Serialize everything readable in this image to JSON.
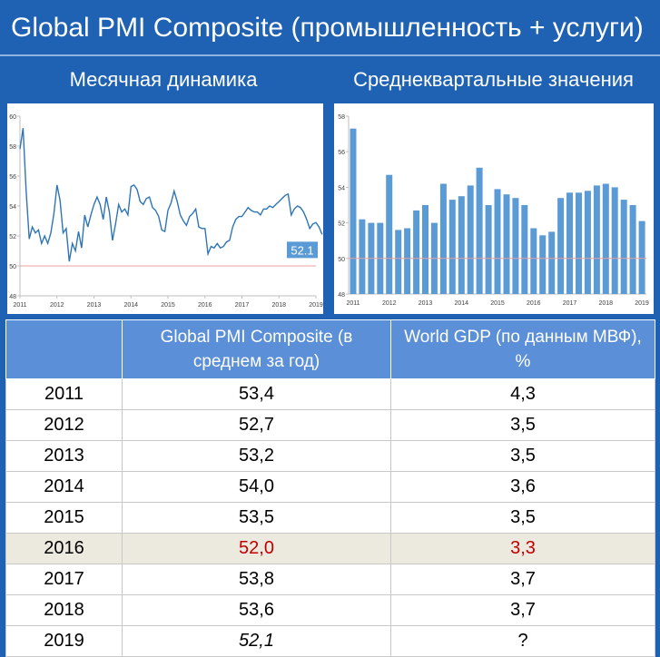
{
  "header": {
    "title": "Global PMI Composite (промышленность + услуги)",
    "left_subtitle": "Месячная динамика",
    "right_subtitle": "Среднеквартальные значения"
  },
  "chart_data": [
    {
      "type": "line",
      "title": "Месячная динамика",
      "ylim": [
        48,
        60
      ],
      "yticks": [
        48,
        50,
        52,
        54,
        56,
        58,
        60
      ],
      "xticks": [
        "2011",
        "2012",
        "2013",
        "2014",
        "2015",
        "2016",
        "2017",
        "2018",
        "2019"
      ],
      "reference_line": 50,
      "last_value_label": "52.1",
      "series": [
        {
          "x_start": "2011-01",
          "values": [
            57.8,
            59.2,
            55.0,
            51.8,
            52.6,
            52.2,
            52.4,
            51.5,
            52.0,
            51.5,
            52.2,
            53.5,
            55.4,
            54.4,
            52.2,
            52.5,
            50.3,
            51.5,
            51.0,
            52.3,
            51.2,
            53.4,
            52.6,
            53.4,
            54.1,
            54.6,
            54.1,
            53.1,
            54.6,
            53.6,
            51.7,
            52.8,
            54.1,
            53.6,
            53.8,
            53.4,
            55.3,
            55.4,
            55.1,
            54.3,
            54.1,
            54.5,
            54.6,
            53.9,
            53.7,
            53.3,
            52.4,
            52.3,
            53.7,
            54.2,
            55.0,
            54.3,
            53.4,
            53.0,
            52.7,
            53.3,
            53.5,
            53.8,
            52.6,
            52.5,
            52.5,
            50.8,
            51.3,
            51.2,
            51.5,
            51.2,
            51.3,
            51.6,
            51.7,
            52.6,
            53.1,
            53.3,
            53.3,
            53.6,
            53.9,
            53.7,
            53.6,
            53.6,
            53.4,
            53.8,
            53.8,
            54.0,
            53.9,
            54.1,
            54.3,
            54.5,
            54.7,
            54.8,
            53.4,
            53.8,
            54.0,
            53.9,
            53.6,
            53.1,
            52.5,
            52.8,
            52.9,
            52.6,
            52.1
          ]
        }
      ]
    },
    {
      "type": "bar",
      "title": "Среднеквартальные значения",
      "ylim": [
        48,
        58
      ],
      "yticks": [
        48,
        50,
        52,
        54,
        56,
        58
      ],
      "xticks": [
        "2011",
        "2012",
        "2013",
        "2014",
        "2015",
        "2016",
        "2017",
        "2018",
        "2019"
      ],
      "reference_line": 50,
      "x_start": "2011-Q1",
      "values": [
        57.3,
        52.2,
        52.0,
        52.0,
        54.7,
        51.6,
        51.7,
        52.7,
        53.0,
        52.0,
        54.2,
        53.3,
        53.5,
        54.1,
        55.1,
        53.0,
        53.9,
        53.6,
        53.4,
        53.0,
        51.7,
        51.3,
        51.5,
        53.4,
        53.7,
        53.7,
        53.8,
        54.1,
        54.2,
        54.0,
        53.3,
        53.0,
        52.1
      ]
    },
    {
      "type": "table",
      "columns": [
        "",
        "Global PMI Composite (в среднем за год)",
        "World GDP (по данным МВФ), %"
      ],
      "rows": [
        [
          "2011",
          "53,4",
          "4,3"
        ],
        [
          "2012",
          "52,7",
          "3,5"
        ],
        [
          "2013",
          "53,2",
          "3,5"
        ],
        [
          "2014",
          "54,0",
          "3,6"
        ],
        [
          "2015",
          "53,5",
          "3,5"
        ],
        [
          "2016",
          "52,0",
          "3,3"
        ],
        [
          "2017",
          "53,8",
          "3,7"
        ],
        [
          "2018",
          "53,6",
          "3,7"
        ],
        [
          "2019",
          "52,1",
          "?"
        ]
      ],
      "highlight_row": 5,
      "highlight_color": "#c00000",
      "italic_row": 8
    }
  ],
  "colors": {
    "background": "#1f62b3",
    "header_cell": "#5b8fd7",
    "line": "#2e75b6",
    "bar": "#5b9bd5",
    "reference_line": "#e8a0a0",
    "highlight_row": "#ece9df",
    "highlight_text": "#c00000"
  }
}
